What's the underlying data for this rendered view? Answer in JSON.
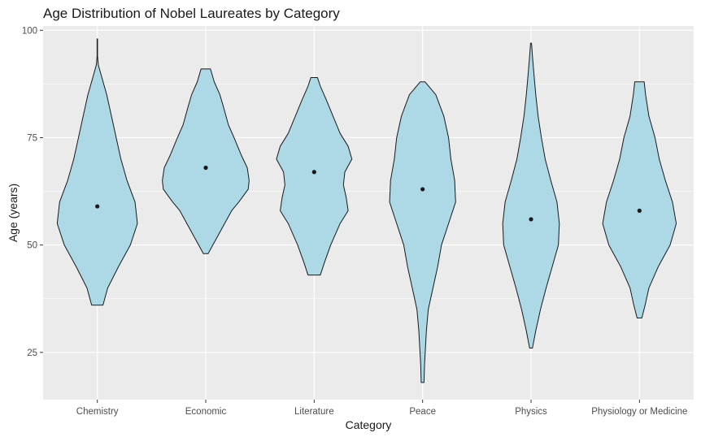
{
  "chart_data": {
    "type": "violin",
    "title": "Age Distribution of Nobel Laureates by Category",
    "xlabel": "Category",
    "ylabel": "Age (years)",
    "ylim": [
      14,
      101
    ],
    "yticks": [
      25,
      50,
      75,
      100
    ],
    "grid": true,
    "colors": {
      "fill": "#add8e6",
      "stroke": "#1a1a1a",
      "panel": "#ebebeb",
      "grid": "#ffffff",
      "point": "#1a1a1a"
    },
    "categories": [
      "Chemistry",
      "Economic",
      "Literature",
      "Peace",
      "Physics",
      "Physiology or Medicine"
    ],
    "series": [
      {
        "category": "Chemistry",
        "min": 36,
        "max": 98,
        "median": 59,
        "density": [
          [
            36,
            0.12
          ],
          [
            40,
            0.22
          ],
          [
            45,
            0.45
          ],
          [
            50,
            0.7
          ],
          [
            55,
            0.85
          ],
          [
            60,
            0.8
          ],
          [
            65,
            0.63
          ],
          [
            70,
            0.5
          ],
          [
            75,
            0.4
          ],
          [
            80,
            0.3
          ],
          [
            85,
            0.2
          ],
          [
            90,
            0.07
          ],
          [
            92,
            0.02
          ],
          [
            94,
            0.005
          ],
          [
            96,
            0.005
          ],
          [
            98,
            0.005
          ]
        ]
      },
      {
        "category": "Economic",
        "min": 48,
        "max": 91,
        "median": 68,
        "density": [
          [
            48,
            0.05
          ],
          [
            50,
            0.15
          ],
          [
            52,
            0.25
          ],
          [
            55,
            0.4
          ],
          [
            58,
            0.55
          ],
          [
            60,
            0.7
          ],
          [
            63,
            0.9
          ],
          [
            65,
            0.92
          ],
          [
            68,
            0.88
          ],
          [
            71,
            0.75
          ],
          [
            75,
            0.6
          ],
          [
            78,
            0.48
          ],
          [
            82,
            0.38
          ],
          [
            85,
            0.3
          ],
          [
            88,
            0.18
          ],
          [
            91,
            0.1
          ]
        ]
      },
      {
        "category": "Literature",
        "min": 43,
        "max": 89,
        "median": 67,
        "density": [
          [
            43,
            0.13
          ],
          [
            46,
            0.22
          ],
          [
            50,
            0.35
          ],
          [
            55,
            0.55
          ],
          [
            58,
            0.72
          ],
          [
            61,
            0.68
          ],
          [
            64,
            0.62
          ],
          [
            67,
            0.65
          ],
          [
            70,
            0.8
          ],
          [
            73,
            0.72
          ],
          [
            76,
            0.55
          ],
          [
            80,
            0.4
          ],
          [
            84,
            0.25
          ],
          [
            87,
            0.13
          ],
          [
            89,
            0.07
          ]
        ]
      },
      {
        "category": "Peace",
        "min": 18,
        "max": 88,
        "median": 63,
        "density": [
          [
            18,
            0.03
          ],
          [
            22,
            0.04
          ],
          [
            26,
            0.06
          ],
          [
            30,
            0.08
          ],
          [
            35,
            0.12
          ],
          [
            40,
            0.22
          ],
          [
            45,
            0.32
          ],
          [
            50,
            0.4
          ],
          [
            55,
            0.55
          ],
          [
            60,
            0.7
          ],
          [
            65,
            0.68
          ],
          [
            70,
            0.6
          ],
          [
            75,
            0.55
          ],
          [
            80,
            0.45
          ],
          [
            85,
            0.28
          ],
          [
            88,
            0.05
          ]
        ]
      },
      {
        "category": "Physics",
        "min": 26,
        "max": 97,
        "median": 56,
        "density": [
          [
            26,
            0.03
          ],
          [
            30,
            0.1
          ],
          [
            35,
            0.2
          ],
          [
            40,
            0.32
          ],
          [
            45,
            0.45
          ],
          [
            50,
            0.58
          ],
          [
            55,
            0.6
          ],
          [
            60,
            0.55
          ],
          [
            65,
            0.42
          ],
          [
            70,
            0.3
          ],
          [
            75,
            0.22
          ],
          [
            80,
            0.15
          ],
          [
            85,
            0.1
          ],
          [
            90,
            0.06
          ],
          [
            94,
            0.03
          ],
          [
            97,
            0.01
          ]
        ]
      },
      {
        "category": "Physiology or Medicine",
        "min": 33,
        "max": 88,
        "median": 58,
        "density": [
          [
            33,
            0.05
          ],
          [
            36,
            0.12
          ],
          [
            40,
            0.2
          ],
          [
            45,
            0.4
          ],
          [
            50,
            0.65
          ],
          [
            55,
            0.78
          ],
          [
            60,
            0.7
          ],
          [
            65,
            0.55
          ],
          [
            70,
            0.42
          ],
          [
            75,
            0.33
          ],
          [
            80,
            0.2
          ],
          [
            85,
            0.13
          ],
          [
            88,
            0.1
          ]
        ]
      }
    ]
  }
}
